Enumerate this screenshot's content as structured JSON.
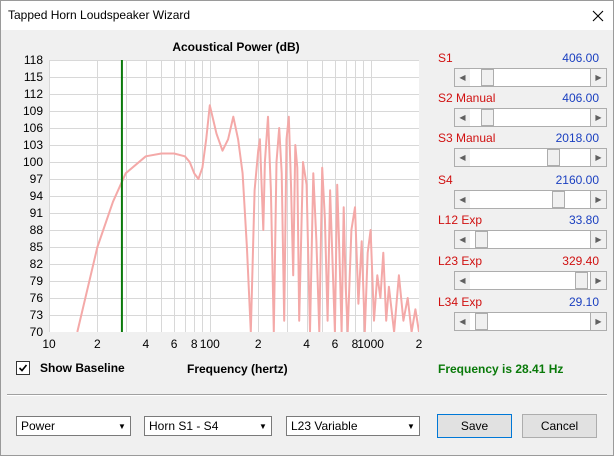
{
  "window": {
    "title": "Tapped Horn Loudspeaker Wizard"
  },
  "chart": {
    "title": "Acoustical Power (dB)",
    "xlabel": "Frequency (hertz)",
    "y_ticks": [
      "118",
      "115",
      "112",
      "109",
      "106",
      "103",
      "100",
      "97",
      "94",
      "91",
      "88",
      "85",
      "82",
      "79",
      "76",
      "73",
      "70"
    ],
    "x_ticks": [
      "10",
      "2",
      "4",
      "6",
      "8",
      "100",
      "2",
      "4",
      "6",
      "8",
      "1000",
      "2"
    ],
    "marker_freq_hz": 28.41,
    "curve_color": "#f4a9a8",
    "marker_color": "#0b7a0b"
  },
  "chart_data": {
    "type": "line",
    "title": "Acoustical Power (dB)",
    "xlabel": "Frequency (hertz)",
    "ylabel": "",
    "xscale": "log",
    "xlim": [
      10,
      2000
    ],
    "ylim": [
      70,
      118
    ],
    "grid": true,
    "series": [
      {
        "x": [
          15,
          20,
          25,
          30,
          40,
          50,
          60,
          70,
          75,
          80,
          85,
          90,
          95,
          100,
          110,
          120,
          130,
          140,
          150,
          160,
          170,
          180,
          190,
          200,
          205,
          210,
          215,
          220,
          230,
          240,
          250,
          260,
          270,
          280,
          290,
          300,
          310,
          320,
          330,
          340,
          350,
          360,
          380,
          400,
          420,
          440,
          460,
          480,
          500,
          520,
          540,
          560,
          580,
          600,
          620,
          640,
          660,
          680,
          700,
          720,
          760,
          800,
          840,
          880,
          920,
          960,
          1000,
          1050,
          1100,
          1150,
          1200,
          1250,
          1300,
          1400,
          1500,
          1600,
          1700,
          1800,
          1900,
          2000
        ],
        "y": [
          70,
          85,
          93,
          98,
          101,
          101.5,
          101.5,
          101,
          100,
          98,
          97,
          99,
          104,
          110,
          105,
          102,
          104,
          108,
          104,
          98,
          85,
          70,
          95,
          102,
          104,
          96,
          88,
          100,
          108,
          95,
          70,
          100,
          106,
          98,
          72,
          104,
          108,
          96,
          80,
          103,
          99,
          72,
          100,
          96,
          70,
          98,
          86,
          70,
          99,
          90,
          72,
          95,
          82,
          70,
          96,
          84,
          70,
          92,
          78,
          70,
          88,
          92,
          75,
          86,
          70,
          84,
          88,
          72,
          80,
          76,
          84,
          72,
          78,
          70,
          80,
          72,
          76,
          70,
          74,
          70
        ]
      }
    ]
  },
  "show_baseline": {
    "label": "Show Baseline",
    "checked": true
  },
  "frequency_readout": "Frequency is 28.41 Hz",
  "params": [
    {
      "label": "S1",
      "value": "406.00",
      "value_color": "blue",
      "level": 0.1
    },
    {
      "label": "S2  Manual",
      "value": "406.00",
      "value_color": "blue",
      "level": 0.1
    },
    {
      "label": "S3  Manual",
      "value": "2018.00",
      "value_color": "blue",
      "level": 0.72
    },
    {
      "label": "S4",
      "value": "2160.00",
      "value_color": "blue",
      "level": 0.77
    },
    {
      "label": "L12  Exp",
      "value": "33.80",
      "value_color": "blue",
      "level": 0.05
    },
    {
      "label": "L23  Exp",
      "value": "329.40",
      "value_color": "red",
      "level": 0.98
    },
    {
      "label": "L34  Exp",
      "value": "29.10",
      "value_color": "blue",
      "level": 0.05
    }
  ],
  "combos": {
    "mode": "Power",
    "horn": "Horn S1 - S4",
    "variable": "L23 Variable"
  },
  "buttons": {
    "save": "Save",
    "cancel": "Cancel"
  }
}
